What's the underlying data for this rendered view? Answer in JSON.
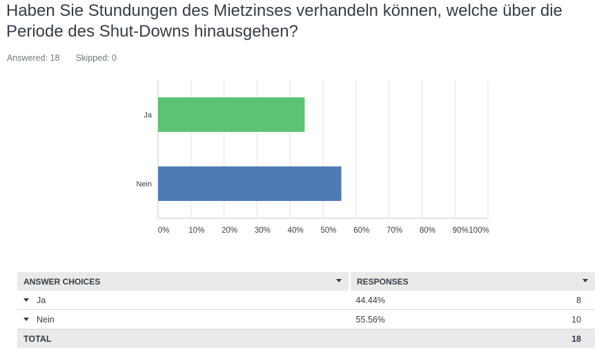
{
  "question": {
    "title": "Haben Sie Stundungen des Mietzinses verhandeln können, welche über die Periode des Shut-Downs hinausgehen?"
  },
  "stats": {
    "answered": "Answered: 18",
    "skipped": "Skipped: 0"
  },
  "chart_data": {
    "type": "bar",
    "orientation": "horizontal",
    "categories": [
      "Ja",
      "Nein"
    ],
    "values": [
      44.44,
      55.56
    ],
    "colors": [
      "#5bc372",
      "#4f7bb5"
    ],
    "xlim": [
      0,
      100
    ],
    "ticks": [
      "0%",
      "10%",
      "20%",
      "30%",
      "40%",
      "50%",
      "60%",
      "70%",
      "80%",
      "90%",
      "100%"
    ],
    "grid": true,
    "legend": "none",
    "title": "",
    "xlabel": "",
    "ylabel": ""
  },
  "table": {
    "headers": {
      "choices": "ANSWER CHOICES",
      "responses": "RESPONSES"
    },
    "rows": [
      {
        "choice": "Ja",
        "percent": "44.44%",
        "count": "8"
      },
      {
        "choice": "Nein",
        "percent": "55.56%",
        "count": "10"
      }
    ],
    "total": {
      "label": "TOTAL",
      "count": "18"
    }
  },
  "icons": {
    "sort": "chevron-down-icon",
    "expand": "caret-down-icon"
  }
}
